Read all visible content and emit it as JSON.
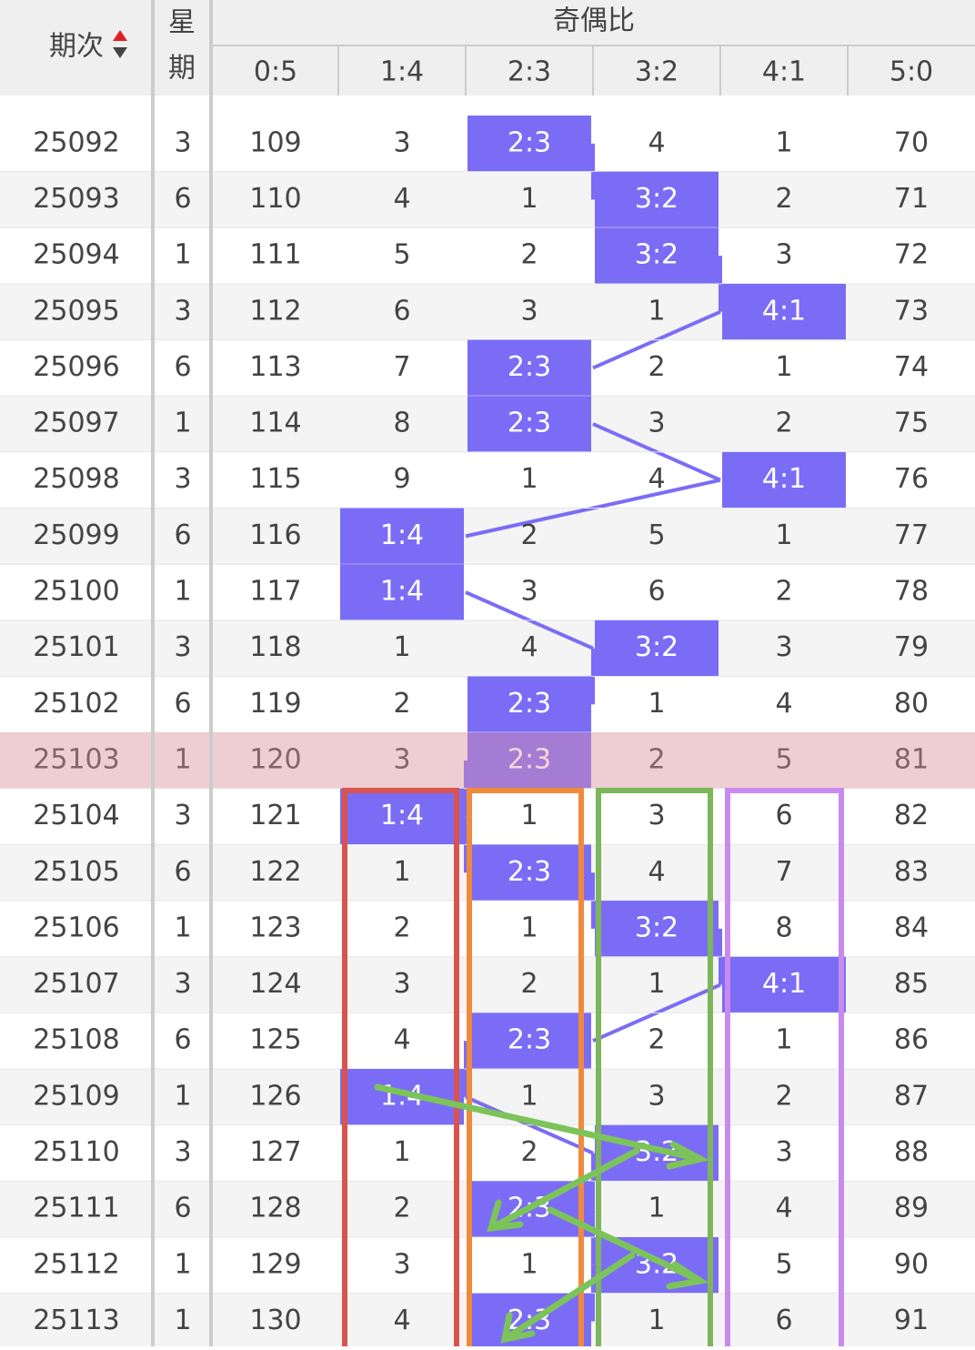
{
  "header": {
    "issue": "期次",
    "weekday": [
      "星",
      "期"
    ],
    "group": "奇偶比",
    "columns": [
      "0:5",
      "1:4",
      "2:3",
      "3:2",
      "4:1",
      "5:0"
    ]
  },
  "rows": [
    [
      25092,
      3,
      109,
      3,
      "2:3",
      4,
      1,
      70
    ],
    [
      25093,
      6,
      110,
      4,
      1,
      "3:2",
      2,
      71
    ],
    [
      25094,
      1,
      111,
      5,
      2,
      "3:2",
      3,
      72
    ],
    [
      25095,
      3,
      112,
      6,
      3,
      1,
      "4:1",
      73
    ],
    [
      25096,
      6,
      113,
      7,
      "2:3",
      2,
      1,
      74
    ],
    [
      25097,
      1,
      114,
      8,
      "2:3",
      3,
      2,
      75
    ],
    [
      25098,
      3,
      115,
      9,
      1,
      4,
      "4:1",
      76
    ],
    [
      25099,
      6,
      116,
      "1:4",
      2,
      5,
      1,
      77
    ],
    [
      25100,
      1,
      117,
      "1:4",
      3,
      6,
      2,
      78
    ],
    [
      25101,
      3,
      118,
      1,
      4,
      "3:2",
      3,
      79
    ],
    [
      25102,
      6,
      119,
      2,
      "2:3",
      1,
      4,
      80
    ],
    [
      25103,
      1,
      120,
      3,
      "2:3",
      2,
      5,
      81
    ],
    [
      25104,
      3,
      121,
      "1:4",
      1,
      3,
      6,
      82
    ],
    [
      25105,
      6,
      122,
      1,
      "2:3",
      4,
      7,
      83
    ],
    [
      25106,
      1,
      123,
      2,
      1,
      "3:2",
      8,
      84
    ],
    [
      25107,
      3,
      124,
      3,
      2,
      1,
      "4:1",
      85
    ],
    [
      25108,
      6,
      125,
      4,
      "2:3",
      2,
      1,
      86
    ],
    [
      25109,
      1,
      126,
      "1:4",
      1,
      3,
      2,
      87
    ],
    [
      25110,
      3,
      127,
      1,
      2,
      "3:2",
      3,
      88
    ],
    [
      25111,
      6,
      128,
      2,
      "2:3",
      1,
      4,
      89
    ],
    [
      25112,
      1,
      129,
      3,
      1,
      "3:2",
      5,
      90
    ],
    [
      25113,
      1,
      130,
      4,
      "2:3",
      1,
      6,
      91
    ]
  ]
}
